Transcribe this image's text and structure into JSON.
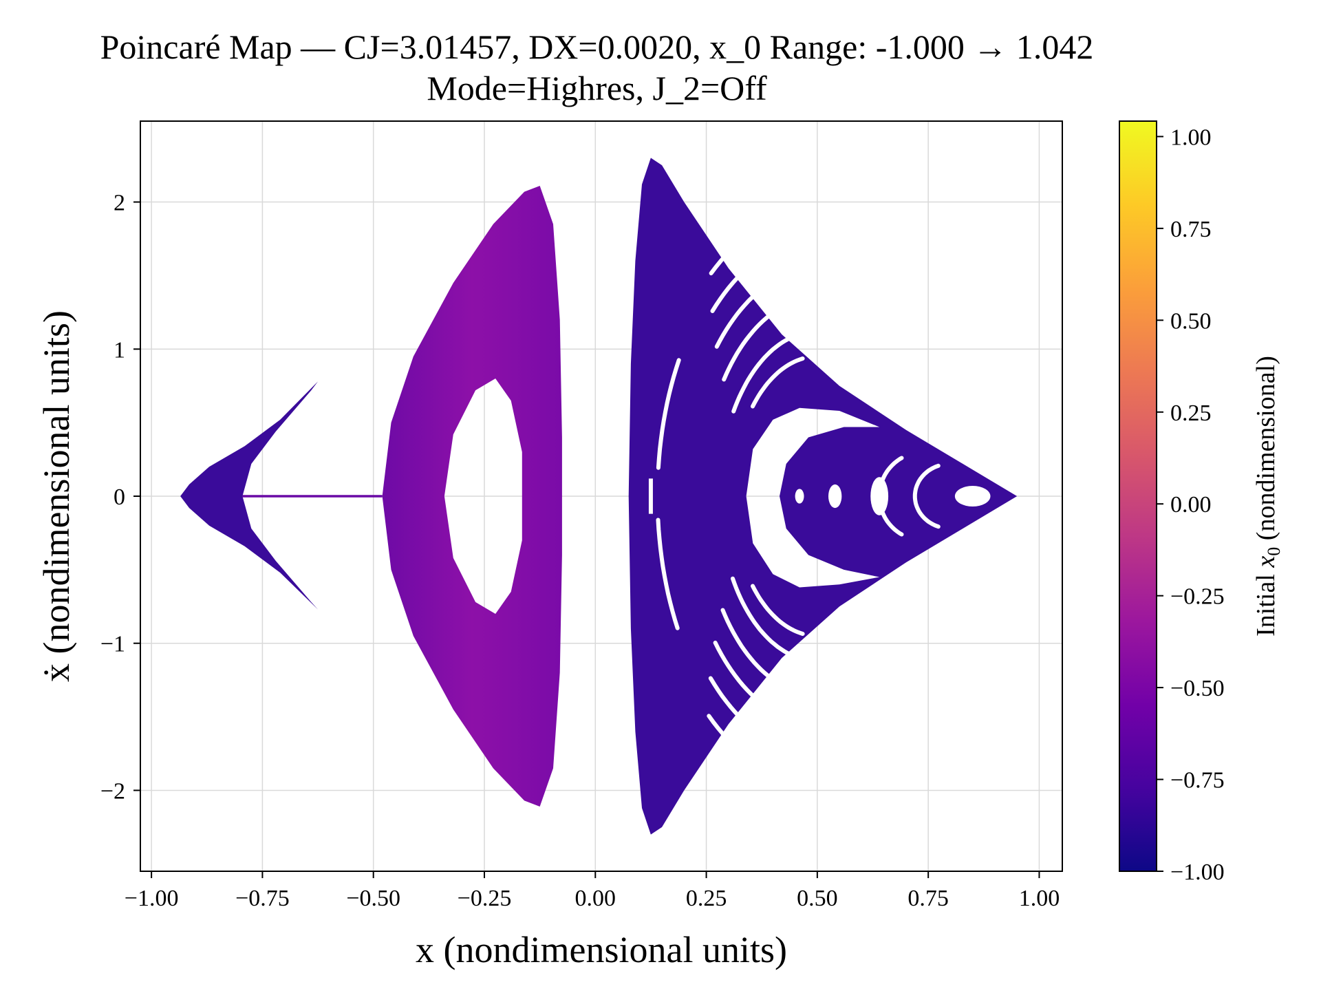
{
  "chart_data": {
    "type": "scatter",
    "title": "Poincaré Map — CJ=3.01457, DX=0.0020, x_0 Range: -1.000 → 1.042",
    "subtitle": "Mode=Highres, J_2=Off",
    "xlabel": "x (nondimensional units)",
    "ylabel": "ẋ (nondimensional units)",
    "xlim": [
      -1.025,
      1.052
    ],
    "ylim": [
      -2.55,
      2.55
    ],
    "xticks": [
      -1.0,
      -0.75,
      -0.5,
      -0.25,
      0.0,
      0.25,
      0.5,
      0.75,
      1.0
    ],
    "xtick_labels": [
      "−1.00",
      "−0.75",
      "−0.50",
      "−0.25",
      "0.00",
      "0.25",
      "0.50",
      "0.75",
      "1.00"
    ],
    "yticks": [
      -2,
      -1,
      0,
      1,
      2
    ],
    "ytick_labels": [
      "−2",
      "−1",
      "0",
      "1",
      "2"
    ],
    "grid": true,
    "colorbar": {
      "label": "Initial x₀ (nondimensional)",
      "label_prefix": "Initial ",
      "label_var": "x",
      "label_sub": "0",
      "label_suffix": " (nondimensional)",
      "range": [
        -1.0,
        1.042
      ],
      "ticks": [
        -1.0,
        -0.75,
        -0.5,
        -0.25,
        0.0,
        0.25,
        0.5,
        0.75,
        1.0
      ],
      "tick_labels": [
        "−1.00",
        "−0.75",
        "−0.50",
        "−0.25",
        "0.00",
        "0.25",
        "0.50",
        "0.75",
        "1.00"
      ],
      "colormap": "plasma",
      "colors": [
        "#0d0887",
        "#46039f",
        "#7201a8",
        "#9c179e",
        "#bd3786",
        "#d8576b",
        "#ed7953",
        "#fb9f3a",
        "#fdca26",
        "#f0f921"
      ]
    },
    "regions": [
      {
        "name": "left-chevron",
        "color": "#3a0b9a",
        "outer": [
          [
            -0.935,
            0.0
          ],
          [
            -0.915,
            0.08
          ],
          [
            -0.87,
            0.2
          ],
          [
            -0.79,
            0.34
          ],
          [
            -0.71,
            0.52
          ],
          [
            -0.625,
            0.78
          ],
          [
            -0.64,
            0.72
          ],
          [
            -0.72,
            0.44
          ],
          [
            -0.775,
            0.22
          ],
          [
            -0.795,
            0.0
          ],
          [
            -0.775,
            -0.22
          ],
          [
            -0.72,
            -0.44
          ],
          [
            -0.64,
            -0.72
          ],
          [
            -0.625,
            -0.77
          ],
          [
            -0.71,
            -0.52
          ],
          [
            -0.79,
            -0.34
          ],
          [
            -0.87,
            -0.2
          ],
          [
            -0.915,
            -0.08
          ]
        ],
        "hole": []
      },
      {
        "name": "connector-line",
        "color": "#6a0aa5",
        "outer": [
          [
            -0.795,
            0.008
          ],
          [
            -0.48,
            0.008
          ],
          [
            -0.48,
            -0.008
          ],
          [
            -0.795,
            -0.008
          ]
        ],
        "hole": []
      },
      {
        "name": "middle-island",
        "color": "#7d0aa8",
        "outer": [
          [
            -0.48,
            0.0
          ],
          [
            -0.46,
            0.5
          ],
          [
            -0.41,
            0.95
          ],
          [
            -0.32,
            1.45
          ],
          [
            -0.23,
            1.85
          ],
          [
            -0.16,
            2.07
          ],
          [
            -0.125,
            2.11
          ],
          [
            -0.095,
            1.85
          ],
          [
            -0.08,
            1.2
          ],
          [
            -0.075,
            0.4
          ],
          [
            -0.075,
            -0.4
          ],
          [
            -0.08,
            -1.2
          ],
          [
            -0.095,
            -1.85
          ],
          [
            -0.125,
            -2.11
          ],
          [
            -0.16,
            -2.07
          ],
          [
            -0.23,
            -1.85
          ],
          [
            -0.32,
            -1.45
          ],
          [
            -0.41,
            -0.95
          ],
          [
            -0.46,
            -0.5
          ]
        ],
        "hole": [
          [
            -0.34,
            0.0
          ],
          [
            -0.32,
            0.42
          ],
          [
            -0.27,
            0.72
          ],
          [
            -0.225,
            0.8
          ],
          [
            -0.19,
            0.65
          ],
          [
            -0.165,
            0.3
          ],
          [
            -0.165,
            -0.3
          ],
          [
            -0.19,
            -0.65
          ],
          [
            -0.225,
            -0.8
          ],
          [
            -0.27,
            -0.72
          ],
          [
            -0.32,
            -0.42
          ]
        ],
        "gradient": [
          "#6e0aa6",
          "#8d10a8",
          "#7a0ba8"
        ]
      },
      {
        "name": "right-chaotic-region",
        "color": "#3a0b9a",
        "outer": [
          [
            0.075,
            0.0
          ],
          [
            0.08,
            0.9
          ],
          [
            0.09,
            1.6
          ],
          [
            0.105,
            2.12
          ],
          [
            0.125,
            2.3
          ],
          [
            0.15,
            2.25
          ],
          [
            0.2,
            2.0
          ],
          [
            0.3,
            1.55
          ],
          [
            0.42,
            1.1
          ],
          [
            0.55,
            0.75
          ],
          [
            0.7,
            0.45
          ],
          [
            0.85,
            0.18
          ],
          [
            0.95,
            0.0
          ],
          [
            0.85,
            -0.18
          ],
          [
            0.7,
            -0.45
          ],
          [
            0.55,
            -0.75
          ],
          [
            0.42,
            -1.1
          ],
          [
            0.3,
            -1.55
          ],
          [
            0.2,
            -2.0
          ],
          [
            0.15,
            -2.25
          ],
          [
            0.125,
            -2.3
          ],
          [
            0.105,
            -2.12
          ],
          [
            0.09,
            -1.6
          ],
          [
            0.08,
            -0.9
          ]
        ],
        "hole": [
          [
            0.34,
            0.0
          ],
          [
            0.355,
            0.32
          ],
          [
            0.4,
            0.52
          ],
          [
            0.46,
            0.6
          ],
          [
            0.55,
            0.58
          ],
          [
            0.64,
            0.47
          ],
          [
            0.56,
            0.47
          ],
          [
            0.48,
            0.4
          ],
          [
            0.43,
            0.22
          ],
          [
            0.415,
            0.0
          ],
          [
            0.43,
            -0.22
          ],
          [
            0.48,
            -0.4
          ],
          [
            0.56,
            -0.5
          ],
          [
            0.64,
            -0.55
          ],
          [
            0.55,
            -0.6
          ],
          [
            0.46,
            -0.62
          ],
          [
            0.4,
            -0.53
          ],
          [
            0.355,
            -0.32
          ]
        ]
      }
    ],
    "white_arcs": [
      {
        "cx": 0.5,
        "cy": 0.0,
        "rx": 0.38,
        "ry": 1.95,
        "a0": 105,
        "a1": 130
      },
      {
        "cx": 0.5,
        "cy": 0.0,
        "rx": 0.34,
        "ry": 1.75,
        "a0": 100,
        "a1": 135
      },
      {
        "cx": 0.5,
        "cy": 0.0,
        "rx": 0.3,
        "ry": 1.55,
        "a0": 95,
        "a1": 140
      },
      {
        "cx": 0.5,
        "cy": 0.0,
        "rx": 0.26,
        "ry": 1.35,
        "a0": 100,
        "a1": 145
      },
      {
        "cx": 0.5,
        "cy": 0.0,
        "rx": 0.22,
        "ry": 1.12,
        "a0": 95,
        "a1": 150
      },
      {
        "cx": 0.5,
        "cy": 0.0,
        "rx": 0.19,
        "ry": 0.95,
        "a0": 100,
        "a1": 140
      },
      {
        "cx": 0.5,
        "cy": 0.0,
        "rx": 0.38,
        "ry": 1.95,
        "a0": 230,
        "a1": 255
      },
      {
        "cx": 0.5,
        "cy": 0.0,
        "rx": 0.34,
        "ry": 1.75,
        "a0": 225,
        "a1": 260
      },
      {
        "cx": 0.5,
        "cy": 0.0,
        "rx": 0.3,
        "ry": 1.55,
        "a0": 220,
        "a1": 265
      },
      {
        "cx": 0.5,
        "cy": 0.0,
        "rx": 0.26,
        "ry": 1.35,
        "a0": 215,
        "a1": 260
      },
      {
        "cx": 0.5,
        "cy": 0.0,
        "rx": 0.22,
        "ry": 1.12,
        "a0": 210,
        "a1": 265
      },
      {
        "cx": 0.5,
        "cy": 0.0,
        "rx": 0.19,
        "ry": 0.95,
        "a0": 220,
        "a1": 260
      },
      {
        "cx": 0.5,
        "cy": 0.0,
        "rx": 0.36,
        "ry": 1.85,
        "a0": 150,
        "a1": 175
      },
      {
        "cx": 0.5,
        "cy": 0.0,
        "rx": 0.36,
        "ry": 1.85,
        "a0": 185,
        "a1": 210
      },
      {
        "cx": 0.74,
        "cy": 0.0,
        "rx": 0.1,
        "ry": 0.3,
        "a0": 120,
        "a1": 240
      },
      {
        "cx": 0.8,
        "cy": 0.0,
        "rx": 0.08,
        "ry": 0.22,
        "a0": 110,
        "a1": 250
      },
      {
        "cx": 0.85,
        "cy": 0.0,
        "rx": 0.04,
        "ry": 0.07,
        "a0": 0,
        "a1": 360
      },
      {
        "cx": 0.64,
        "cy": 0.0,
        "rx": 0.02,
        "ry": 0.13,
        "a0": 0,
        "a1": 360
      },
      {
        "cx": 0.54,
        "cy": 0.0,
        "rx": 0.015,
        "ry": 0.08,
        "a0": 0,
        "a1": 360
      },
      {
        "cx": 0.46,
        "cy": 0.0,
        "rx": 0.01,
        "ry": 0.05,
        "a0": 0,
        "a1": 360
      }
    ],
    "white_bar": {
      "x": 0.125,
      "y0": -0.12,
      "y1": 0.12
    }
  }
}
